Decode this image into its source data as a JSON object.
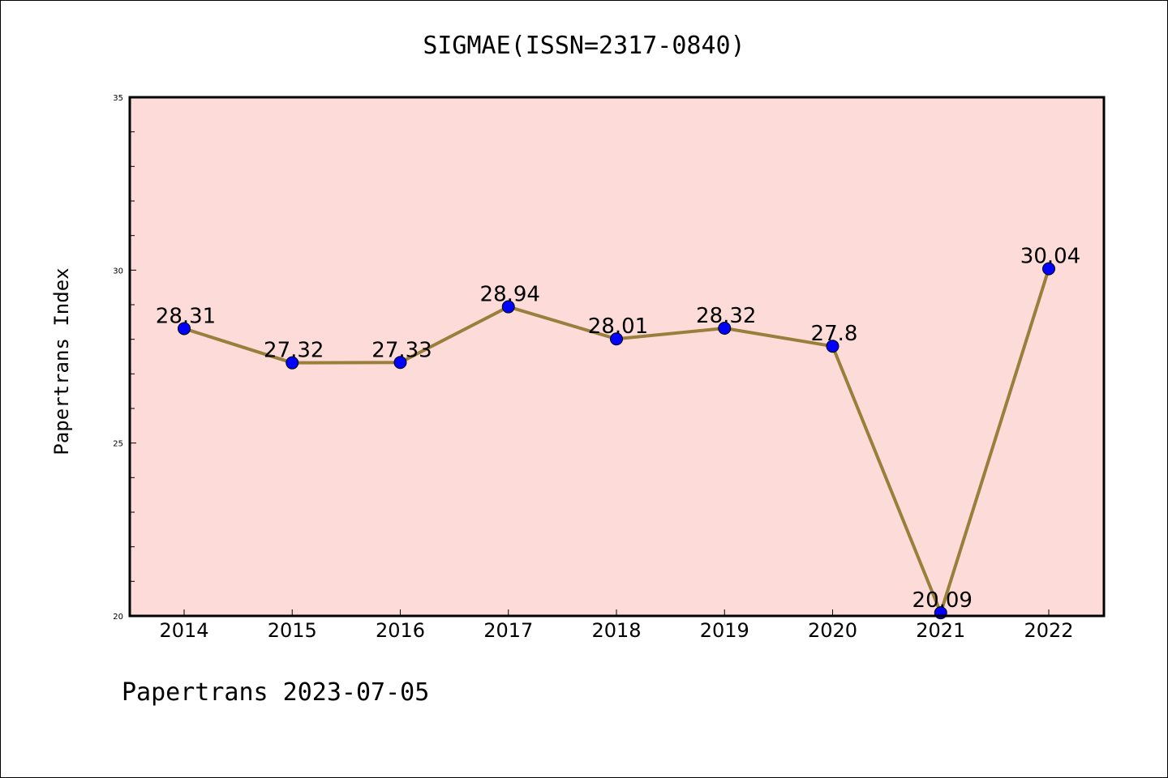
{
  "chart_data": {
    "type": "line",
    "title": "SIGMAE(ISSN=2317-0840)",
    "xlabel": "",
    "ylabel": "Papertrans Index",
    "footer": "Papertrans 2023-07-05",
    "categories": [
      "2014",
      "2015",
      "2016",
      "2017",
      "2018",
      "2019",
      "2020",
      "2021",
      "2022"
    ],
    "series": [
      {
        "values": [
          28.31,
          27.32,
          27.33,
          28.94,
          28.01,
          28.32,
          27.8,
          20.09,
          30.04
        ],
        "labels": [
          "28.31",
          "27.32",
          "27.33",
          "28.94",
          "28.01",
          "28.32",
          "27.8",
          "20.09",
          "30.04"
        ]
      }
    ],
    "ylim": [
      20,
      35
    ],
    "yticks": [
      "20",
      "25",
      "30",
      "35"
    ],
    "grid": false,
    "legend": "none",
    "colors": {
      "plot_background": "#fddbd8",
      "line": "#9a7f3c",
      "marker": "#0000ff"
    }
  }
}
